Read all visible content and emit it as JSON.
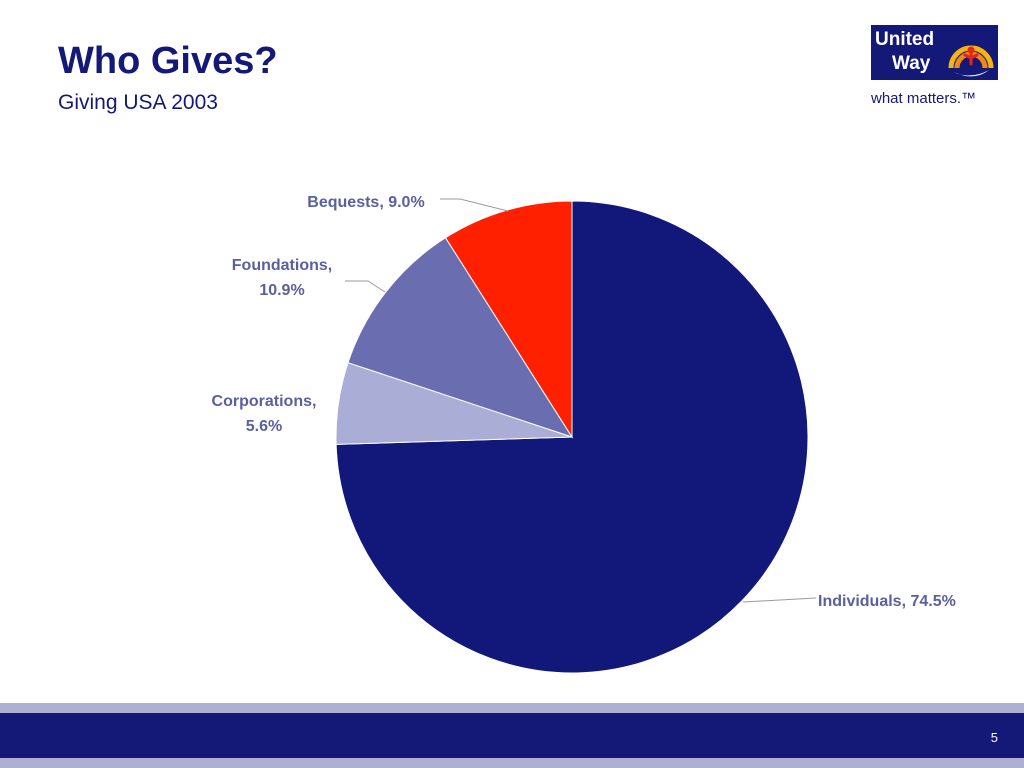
{
  "slide": {
    "title": "Who Gives?",
    "subtitle": "Giving USA 2003",
    "page_number": "5"
  },
  "logo": {
    "line1": "United",
    "line2": "Way",
    "tagline": "what matters.™",
    "icon": "united-way-hand-rainbow-emblem"
  },
  "colors": {
    "title": "#141978",
    "footer_dark": "#141978",
    "footer_light": "#aeb0d3"
  },
  "chart_data": {
    "type": "pie",
    "slices": [
      {
        "label": "Individuals, 74.5%",
        "lines": [
          "Individuals, 74.5%"
        ],
        "value": 74.5,
        "color": "#12177a"
      },
      {
        "label": "Corporations, 5.6%",
        "lines": [
          "Corporations,",
          "5.6%"
        ],
        "value": 5.6,
        "color": "#aaadd6"
      },
      {
        "label": "Foundations, 10.9%",
        "lines": [
          "Foundations,",
          "10.9%"
        ],
        "value": 10.9,
        "color": "#6a6db0"
      },
      {
        "label": "Bequests, 9.0%",
        "lines": [
          "Bequests, 9.0%"
        ],
        "value": 9.0,
        "color": "#ff2000"
      }
    ],
    "start": "12 o'clock",
    "direction": "clockwise",
    "legend": "none",
    "labels": "outside with leader lines"
  }
}
